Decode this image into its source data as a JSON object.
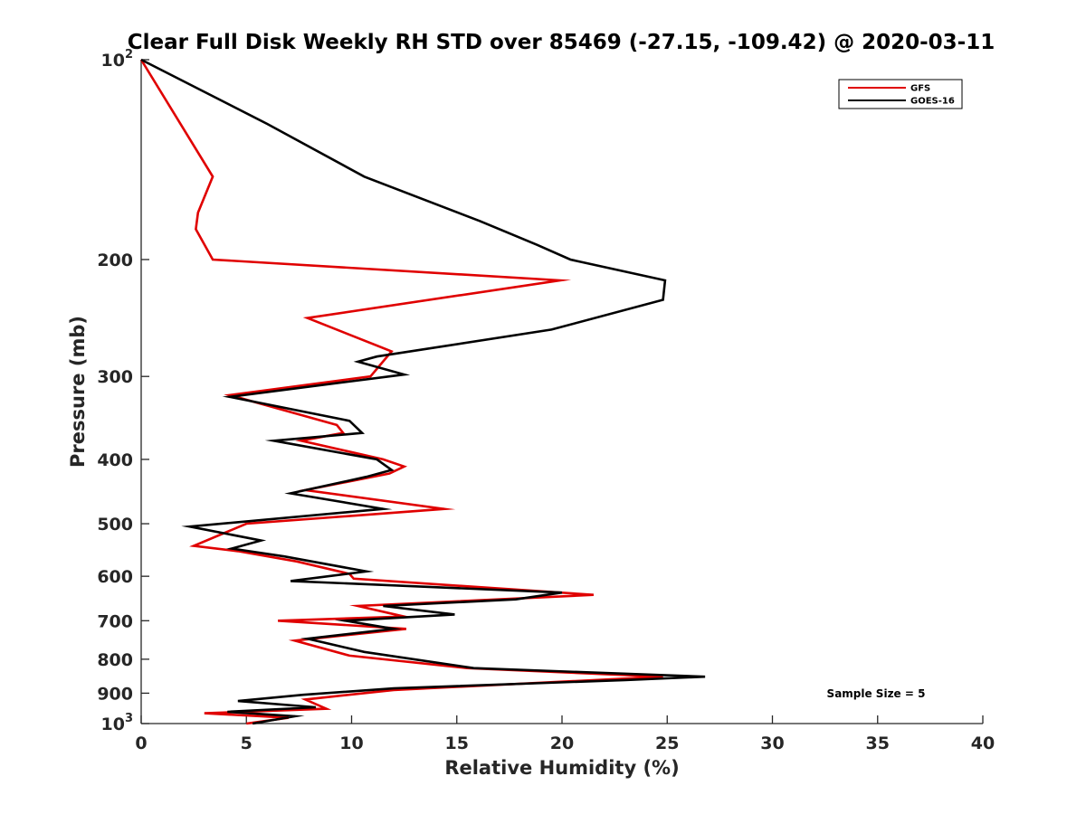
{
  "chart_data": {
    "type": "line",
    "title": "Clear Full Disk Weekly RH STD over 85469 (-27.15, -109.42) @ 2020-03-11",
    "xlabel": "Relative Humidity (%)",
    "ylabel": "Pressure (mb)",
    "xlim": [
      0,
      40
    ],
    "ylim": [
      100,
      1000
    ],
    "yscale": "log",
    "y_reversed": true,
    "grid": false,
    "legend_position": "top-right",
    "xticks": [
      {
        "value": 0,
        "label": "0"
      },
      {
        "value": 5,
        "label": "5"
      },
      {
        "value": 10,
        "label": "10"
      },
      {
        "value": 15,
        "label": "15"
      },
      {
        "value": 20,
        "label": "20"
      },
      {
        "value": 25,
        "label": "25"
      },
      {
        "value": 30,
        "label": "30"
      },
      {
        "value": 35,
        "label": "35"
      },
      {
        "value": 40,
        "label": "40"
      }
    ],
    "yticks": [
      {
        "value": 100,
        "base": "10",
        "exp": "2"
      },
      {
        "value": 200,
        "label": "200"
      },
      {
        "value": 300,
        "label": "300"
      },
      {
        "value": 400,
        "label": "400"
      },
      {
        "value": 500,
        "label": "500"
      },
      {
        "value": 600,
        "label": "600"
      },
      {
        "value": 700,
        "label": "700"
      },
      {
        "value": 800,
        "label": "800"
      },
      {
        "value": 900,
        "label": "900"
      },
      {
        "value": 1000,
        "base": "10",
        "exp": "3"
      }
    ],
    "annotation": "Sample Size = 5",
    "series": [
      {
        "name": "GFS",
        "color": "#e00000",
        "points": [
          [
            0.0,
            100
          ],
          [
            3.4,
            150
          ],
          [
            2.7,
            170
          ],
          [
            2.6,
            180
          ],
          [
            3.4,
            200
          ],
          [
            19.9,
            215
          ],
          [
            7.9,
            245
          ],
          [
            11.9,
            275
          ],
          [
            10.9,
            300
          ],
          [
            4.2,
            320
          ],
          [
            9.3,
            355
          ],
          [
            9.6,
            365
          ],
          [
            7.6,
            375
          ],
          [
            11.5,
            400
          ],
          [
            12.5,
            410
          ],
          [
            11.8,
            420
          ],
          [
            7.8,
            445
          ],
          [
            14.4,
            475
          ],
          [
            5.0,
            500
          ],
          [
            2.5,
            540
          ],
          [
            4.6,
            550
          ],
          [
            7.4,
            570
          ],
          [
            9.9,
            595
          ],
          [
            10.1,
            605
          ],
          [
            21.5,
            640
          ],
          [
            10.3,
            665
          ],
          [
            12.5,
            690
          ],
          [
            6.5,
            700
          ],
          [
            12.6,
            720
          ],
          [
            7.3,
            750
          ],
          [
            9.9,
            790
          ],
          [
            15.5,
            825
          ],
          [
            24.8,
            850
          ],
          [
            12.0,
            890
          ],
          [
            7.8,
            920
          ],
          [
            8.8,
            950
          ],
          [
            3.0,
            965
          ],
          [
            7.0,
            980
          ],
          [
            5.0,
            1000
          ]
        ]
      },
      {
        "name": "GOES-16",
        "color": "#000000",
        "points": [
          [
            0.0,
            100
          ],
          [
            6.0,
            125
          ],
          [
            10.6,
            150
          ],
          [
            16.1,
            175
          ],
          [
            18.8,
            190
          ],
          [
            20.4,
            200
          ],
          [
            24.9,
            215
          ],
          [
            24.8,
            230
          ],
          [
            19.5,
            255
          ],
          [
            11.2,
            280
          ],
          [
            10.3,
            285
          ],
          [
            12.5,
            298
          ],
          [
            4.2,
            322
          ],
          [
            9.9,
            350
          ],
          [
            10.5,
            365
          ],
          [
            6.3,
            375
          ],
          [
            11.2,
            400
          ],
          [
            11.9,
            415
          ],
          [
            10.7,
            425
          ],
          [
            7.1,
            450
          ],
          [
            11.5,
            475
          ],
          [
            2.3,
            505
          ],
          [
            5.7,
            530
          ],
          [
            4.3,
            545
          ],
          [
            6.8,
            560
          ],
          [
            10.7,
            590
          ],
          [
            7.1,
            610
          ],
          [
            20.0,
            635
          ],
          [
            17.8,
            650
          ],
          [
            11.5,
            665
          ],
          [
            14.9,
            685
          ],
          [
            9.7,
            700
          ],
          [
            12.0,
            720
          ],
          [
            7.9,
            745
          ],
          [
            10.6,
            780
          ],
          [
            15.8,
            825
          ],
          [
            26.8,
            850
          ],
          [
            23.0,
            860
          ],
          [
            12.0,
            885
          ],
          [
            7.7,
            905
          ],
          [
            4.6,
            925
          ],
          [
            8.3,
            945
          ],
          [
            4.1,
            960
          ],
          [
            7.3,
            975
          ],
          [
            5.3,
            1000
          ]
        ]
      }
    ]
  }
}
